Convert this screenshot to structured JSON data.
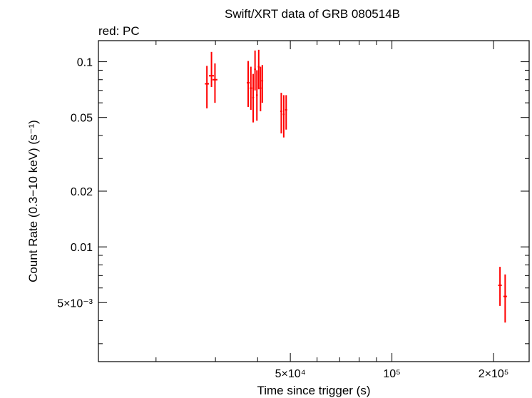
{
  "chart_data": {
    "type": "scatter",
    "title": "Swift/XRT data of GRB 080514B",
    "subtitle": "red: PC",
    "xlabel": "Time since trigger (s)",
    "ylabel": "Count Rate (0.3−10 keV) (s⁻¹)",
    "xscale": "log",
    "yscale": "log",
    "xlim": [
      13500,
      255000
    ],
    "ylim": [
      0.0024,
      0.13
    ],
    "x_tick_labels": [
      "5×10⁴",
      "10⁵",
      "2×10⁵"
    ],
    "y_tick_labels": [
      "0.1",
      "0.05",
      "0.02",
      "0.01",
      "5×10⁻³"
    ],
    "grid": false,
    "series": [
      {
        "color": "#ff0000",
        "points": [
          {
            "x": 28300,
            "y": 0.076,
            "xerr": 400,
            "ylo": 0.056,
            "yhi": 0.095
          },
          {
            "x": 29200,
            "y": 0.084,
            "xerr": 500,
            "ylo": 0.073,
            "yhi": 0.113
          },
          {
            "x": 29900,
            "y": 0.08,
            "xerr": 500,
            "ylo": 0.06,
            "yhi": 0.098
          },
          {
            "x": 37500,
            "y": 0.077,
            "xerr": 350,
            "ylo": 0.057,
            "yhi": 0.101
          },
          {
            "x": 38200,
            "y": 0.072,
            "xerr": 300,
            "ylo": 0.055,
            "yhi": 0.094
          },
          {
            "x": 38800,
            "y": 0.064,
            "xerr": 250,
            "ylo": 0.047,
            "yhi": 0.086
          },
          {
            "x": 39300,
            "y": 0.091,
            "xerr": 250,
            "ylo": 0.07,
            "yhi": 0.115
          },
          {
            "x": 39800,
            "y": 0.066,
            "xerr": 250,
            "ylo": 0.048,
            "yhi": 0.09
          },
          {
            "x": 40300,
            "y": 0.094,
            "xerr": 250,
            "ylo": 0.071,
            "yhi": 0.116
          },
          {
            "x": 40800,
            "y": 0.072,
            "xerr": 250,
            "ylo": 0.054,
            "yhi": 0.094
          },
          {
            "x": 41300,
            "y": 0.079,
            "xerr": 250,
            "ylo": 0.06,
            "yhi": 0.096
          },
          {
            "x": 47000,
            "y": 0.054,
            "xerr": 300,
            "ylo": 0.041,
            "yhi": 0.068
          },
          {
            "x": 47800,
            "y": 0.052,
            "xerr": 300,
            "ylo": 0.039,
            "yhi": 0.066
          },
          {
            "x": 48600,
            "y": 0.055,
            "xerr": 350,
            "ylo": 0.043,
            "yhi": 0.066
          },
          {
            "x": 209000,
            "y": 0.0062,
            "xerr": 2600,
            "ylo": 0.0048,
            "yhi": 0.0078
          },
          {
            "x": 216500,
            "y": 0.0054,
            "xerr": 2600,
            "ylo": 0.0039,
            "yhi": 0.0071
          }
        ]
      }
    ]
  }
}
